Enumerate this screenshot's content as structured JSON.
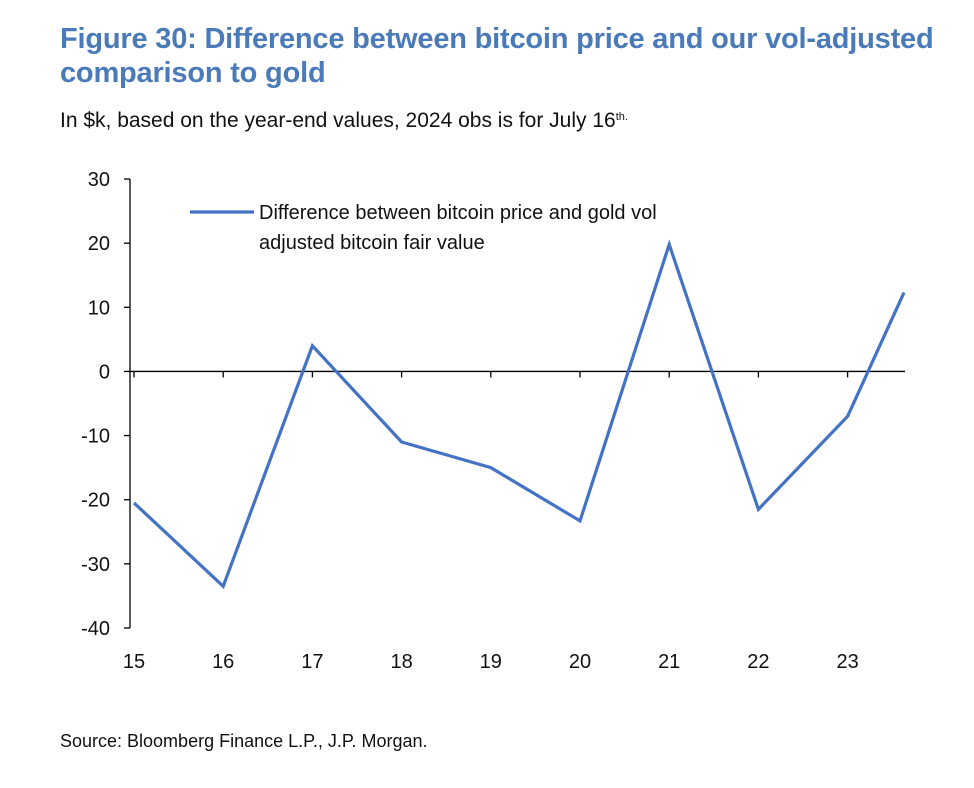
{
  "title": "Figure 30: Difference between bitcoin price and our vol-adjusted comparison to gold",
  "subtitle": {
    "main": "In $k, based on the year-end values, 2024 obs is for July 16",
    "sup": "th."
  },
  "source": "Source: Bloomberg Finance L.P., J.P. Morgan.",
  "colors": {
    "line": "#4472c4",
    "title": "#4a7ab8",
    "axis": "#000000"
  },
  "chart_data": {
    "type": "line",
    "x": [
      "15",
      "16",
      "17",
      "18",
      "19",
      "20",
      "21",
      "22",
      "23",
      "24"
    ],
    "x_tick_labels": [
      "15",
      "16",
      "17",
      "18",
      "19",
      "20",
      "21",
      "22",
      "23"
    ],
    "series": [
      {
        "name": "Difference between bitcoin price and gold vol adjusted bitcoin fair value",
        "legend_lines": [
          "Difference between bitcoin price and gold vol",
          "adjusted bitcoin fair value"
        ],
        "values": [
          -20.5,
          -33.5,
          4,
          -11,
          -15,
          -23.3,
          19.8,
          -21.5,
          -7,
          12.3
        ]
      }
    ],
    "y_ticks": [
      30,
      20,
      10,
      0,
      -10,
      -20,
      -30,
      -40
    ],
    "ylim": [
      -40,
      30
    ],
    "grid": false,
    "legend_position": "top-left"
  }
}
